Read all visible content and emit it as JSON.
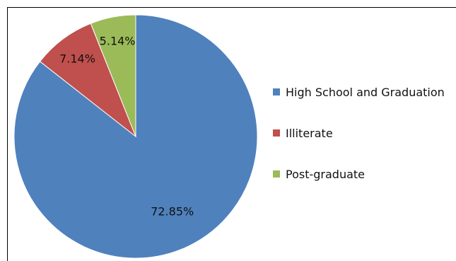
{
  "chart_data": {
    "type": "pie",
    "title": "",
    "categories": [
      "High School and Graduation",
      "Illiterate",
      "Post-graduate"
    ],
    "values": [
      72.85,
      7.14,
      5.14
    ],
    "labels": [
      "72.85%",
      "7.14%",
      "5.14%"
    ],
    "colors": [
      "#4F81BD",
      "#C0504D",
      "#9BBB59"
    ],
    "legend": "right"
  }
}
